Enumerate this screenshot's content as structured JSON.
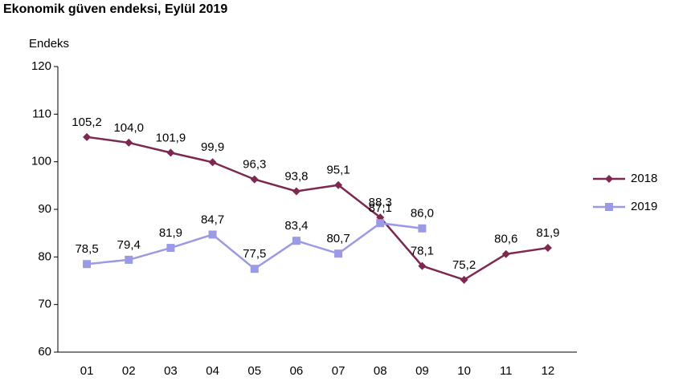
{
  "chart_data": {
    "type": "line",
    "title": "Ekonomik güven endeksi, Eylül 2019",
    "ylabel": "Endeks",
    "categories": [
      "01",
      "02",
      "03",
      "04",
      "05",
      "06",
      "07",
      "08",
      "09",
      "10",
      "11",
      "12"
    ],
    "series": [
      {
        "name": "2018",
        "color": "#7d2850",
        "marker": "diamond",
        "values": [
          105.2,
          104.0,
          101.9,
          99.9,
          96.3,
          93.8,
          95.1,
          88.3,
          78.1,
          75.2,
          80.6,
          81.9
        ],
        "value_labels": [
          "105,2",
          "104,0",
          "101,9",
          "99,9",
          "96,3",
          "93,8",
          "95,1",
          "88,3",
          "78,1",
          "75,2",
          "80,6",
          "81,9"
        ]
      },
      {
        "name": "2019",
        "color": "#9a9ae6",
        "marker": "square",
        "values": [
          78.5,
          79.4,
          81.9,
          84.7,
          77.5,
          83.4,
          80.7,
          87.1,
          86.0,
          null,
          null,
          null
        ],
        "value_labels": [
          "78,5",
          "79,4",
          "81,9",
          "84,7",
          "77,5",
          "83,4",
          "80,7",
          "87,1",
          "86,0",
          null,
          null,
          null
        ]
      }
    ],
    "ylim": [
      60,
      120
    ],
    "yticks": [
      60,
      70,
      80,
      90,
      100,
      110,
      120
    ],
    "grid": false,
    "legend": "right"
  }
}
